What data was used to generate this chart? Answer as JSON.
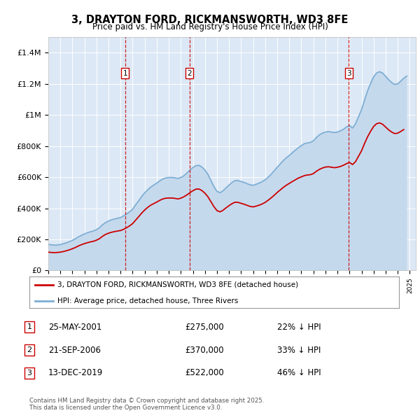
{
  "title": "3, DRAYTON FORD, RICKMANSWORTH, WD3 8FE",
  "subtitle": "Price paid vs. HM Land Registry's House Price Index (HPI)",
  "ylim": [
    0,
    1500000
  ],
  "xlim_start": 1995.0,
  "xlim_end": 2025.5,
  "yticks": [
    0,
    200000,
    400000,
    600000,
    800000,
    1000000,
    1200000,
    1400000
  ],
  "ytick_labels": [
    "£0",
    "£200K",
    "£400K",
    "£600K",
    "£800K",
    "£1M",
    "£1.2M",
    "£1.4M"
  ],
  "background_color": "#ffffff",
  "plot_bg_color": "#dce8f5",
  "grid_color": "#ffffff",
  "red_line_color": "#cc0000",
  "blue_line_color": "#7daed4",
  "blue_fill_color": "#c5d9ed",
  "purchases": [
    {
      "num": 1,
      "date": "25-MAY-2001",
      "price": 275000,
      "year": 2001.38,
      "pct": "22%",
      "dir": "↓"
    },
    {
      "num": 2,
      "date": "21-SEP-2006",
      "price": 370000,
      "year": 2006.71,
      "pct": "33%",
      "dir": "↓"
    },
    {
      "num": 3,
      "date": "13-DEC-2019",
      "price": 522000,
      "year": 2019.95,
      "pct": "46%",
      "dir": "↓"
    }
  ],
  "legend_line1": "3, DRAYTON FORD, RICKMANSWORTH, WD3 8FE (detached house)",
  "legend_line2": "HPI: Average price, detached house, Three Rivers",
  "footnote": "Contains HM Land Registry data © Crown copyright and database right 2025.\nThis data is licensed under the Open Government Licence v3.0.",
  "hpi_years": [
    1995.0,
    1995.25,
    1995.5,
    1995.75,
    1996.0,
    1996.25,
    1996.5,
    1996.75,
    1997.0,
    1997.25,
    1997.5,
    1997.75,
    1998.0,
    1998.25,
    1998.5,
    1998.75,
    1999.0,
    1999.25,
    1999.5,
    1999.75,
    2000.0,
    2000.25,
    2000.5,
    2000.75,
    2001.0,
    2001.25,
    2001.5,
    2001.75,
    2002.0,
    2002.25,
    2002.5,
    2002.75,
    2003.0,
    2003.25,
    2003.5,
    2003.75,
    2004.0,
    2004.25,
    2004.5,
    2004.75,
    2005.0,
    2005.25,
    2005.5,
    2005.75,
    2006.0,
    2006.25,
    2006.5,
    2006.75,
    2007.0,
    2007.25,
    2007.5,
    2007.75,
    2008.0,
    2008.25,
    2008.5,
    2008.75,
    2009.0,
    2009.25,
    2009.5,
    2009.75,
    2010.0,
    2010.25,
    2010.5,
    2010.75,
    2011.0,
    2011.25,
    2011.5,
    2011.75,
    2012.0,
    2012.25,
    2012.5,
    2012.75,
    2013.0,
    2013.25,
    2013.5,
    2013.75,
    2014.0,
    2014.25,
    2014.5,
    2014.75,
    2015.0,
    2015.25,
    2015.5,
    2015.75,
    2016.0,
    2016.25,
    2016.5,
    2016.75,
    2017.0,
    2017.25,
    2017.5,
    2017.75,
    2018.0,
    2018.25,
    2018.5,
    2018.75,
    2019.0,
    2019.25,
    2019.5,
    2019.75,
    2020.0,
    2020.25,
    2020.5,
    2020.75,
    2021.0,
    2021.25,
    2021.5,
    2021.75,
    2022.0,
    2022.25,
    2022.5,
    2022.75,
    2023.0,
    2023.25,
    2023.5,
    2023.75,
    2024.0,
    2024.25,
    2024.5,
    2024.75
  ],
  "hpi_vals": [
    168000,
    165000,
    163000,
    164000,
    167000,
    172000,
    178000,
    185000,
    194000,
    204000,
    216000,
    226000,
    235000,
    243000,
    249000,
    254000,
    263000,
    275000,
    294000,
    308000,
    318000,
    326000,
    331000,
    336000,
    341000,
    351000,
    363000,
    377000,
    395000,
    422000,
    448000,
    476000,
    499000,
    519000,
    536000,
    549000,
    562000,
    576000,
    588000,
    595000,
    598000,
    598000,
    596000,
    592000,
    598000,
    609000,
    626000,
    645000,
    662000,
    674000,
    676000,
    665000,
    646000,
    618000,
    578000,
    538000,
    509000,
    500000,
    512000,
    531000,
    549000,
    566000,
    578000,
    578000,
    572000,
    566000,
    558000,
    551000,
    548000,
    554000,
    562000,
    571000,
    583000,
    600000,
    619000,
    641000,
    664000,
    685000,
    706000,
    724000,
    740000,
    757000,
    773000,
    789000,
    803000,
    815000,
    820000,
    823000,
    833000,
    855000,
    872000,
    883000,
    890000,
    893000,
    890000,
    887000,
    890000,
    898000,
    908000,
    923000,
    932000,
    916000,
    943000,
    989000,
    1035000,
    1097000,
    1155000,
    1203000,
    1245000,
    1270000,
    1278000,
    1269000,
    1248000,
    1226000,
    1208000,
    1196000,
    1200000,
    1217000,
    1236000,
    1250000
  ],
  "price_years": [
    1995.0,
    1995.25,
    1995.5,
    1995.75,
    1996.0,
    1996.25,
    1996.5,
    1996.75,
    1997.0,
    1997.25,
    1997.5,
    1997.75,
    1998.0,
    1998.25,
    1998.5,
    1998.75,
    1999.0,
    1999.25,
    1999.5,
    1999.75,
    2000.0,
    2000.25,
    2000.5,
    2000.75,
    2001.0,
    2001.25,
    2001.5,
    2001.75,
    2002.0,
    2002.25,
    2002.5,
    2002.75,
    2003.0,
    2003.25,
    2003.5,
    2003.75,
    2004.0,
    2004.25,
    2004.5,
    2004.75,
    2005.0,
    2005.25,
    2005.5,
    2005.75,
    2006.0,
    2006.25,
    2006.5,
    2006.75,
    2007.0,
    2007.25,
    2007.5,
    2007.75,
    2008.0,
    2008.25,
    2008.5,
    2008.75,
    2009.0,
    2009.25,
    2009.5,
    2009.75,
    2010.0,
    2010.25,
    2010.5,
    2010.75,
    2011.0,
    2011.25,
    2011.5,
    2011.75,
    2012.0,
    2012.25,
    2012.5,
    2012.75,
    2013.0,
    2013.25,
    2013.5,
    2013.75,
    2014.0,
    2014.25,
    2014.5,
    2014.75,
    2015.0,
    2015.25,
    2015.5,
    2015.75,
    2016.0,
    2016.25,
    2016.5,
    2016.75,
    2017.0,
    2017.25,
    2017.5,
    2017.75,
    2018.0,
    2018.25,
    2018.5,
    2018.75,
    2019.0,
    2019.25,
    2019.5,
    2019.75,
    2020.0,
    2020.25,
    2020.5,
    2020.75,
    2021.0,
    2021.25,
    2021.5,
    2021.75,
    2022.0,
    2022.25,
    2022.5,
    2022.75,
    2023.0,
    2023.25,
    2023.5,
    2023.75,
    2024.0,
    2024.25,
    2024.5
  ],
  "price_vals": [
    118000,
    116000,
    115000,
    116000,
    118000,
    122000,
    127000,
    133000,
    140000,
    148000,
    158000,
    166000,
    173000,
    179000,
    184000,
    188000,
    195000,
    205000,
    220000,
    232000,
    240000,
    246000,
    250000,
    254000,
    257000,
    265000,
    275000,
    287000,
    302000,
    324000,
    346000,
    369000,
    389000,
    406000,
    420000,
    430000,
    440000,
    451000,
    460000,
    465000,
    466000,
    466000,
    464000,
    460000,
    465000,
    474000,
    486000,
    500000,
    513000,
    523000,
    524000,
    514000,
    497000,
    474000,
    442000,
    410000,
    385000,
    377000,
    387000,
    403000,
    417000,
    430000,
    439000,
    438000,
    432000,
    426000,
    419000,
    412000,
    409000,
    414000,
    420000,
    428000,
    438000,
    452000,
    467000,
    484000,
    502000,
    518000,
    534000,
    548000,
    560000,
    572000,
    583000,
    594000,
    602000,
    610000,
    614000,
    616000,
    623000,
    638000,
    650000,
    659000,
    665000,
    667000,
    664000,
    661000,
    664000,
    669000,
    677000,
    687000,
    695000,
    681000,
    700000,
    735000,
    770000,
    817000,
    860000,
    895000,
    926000,
    944000,
    949000,
    940000,
    922000,
    904000,
    890000,
    880000,
    883000,
    894000,
    906000
  ]
}
